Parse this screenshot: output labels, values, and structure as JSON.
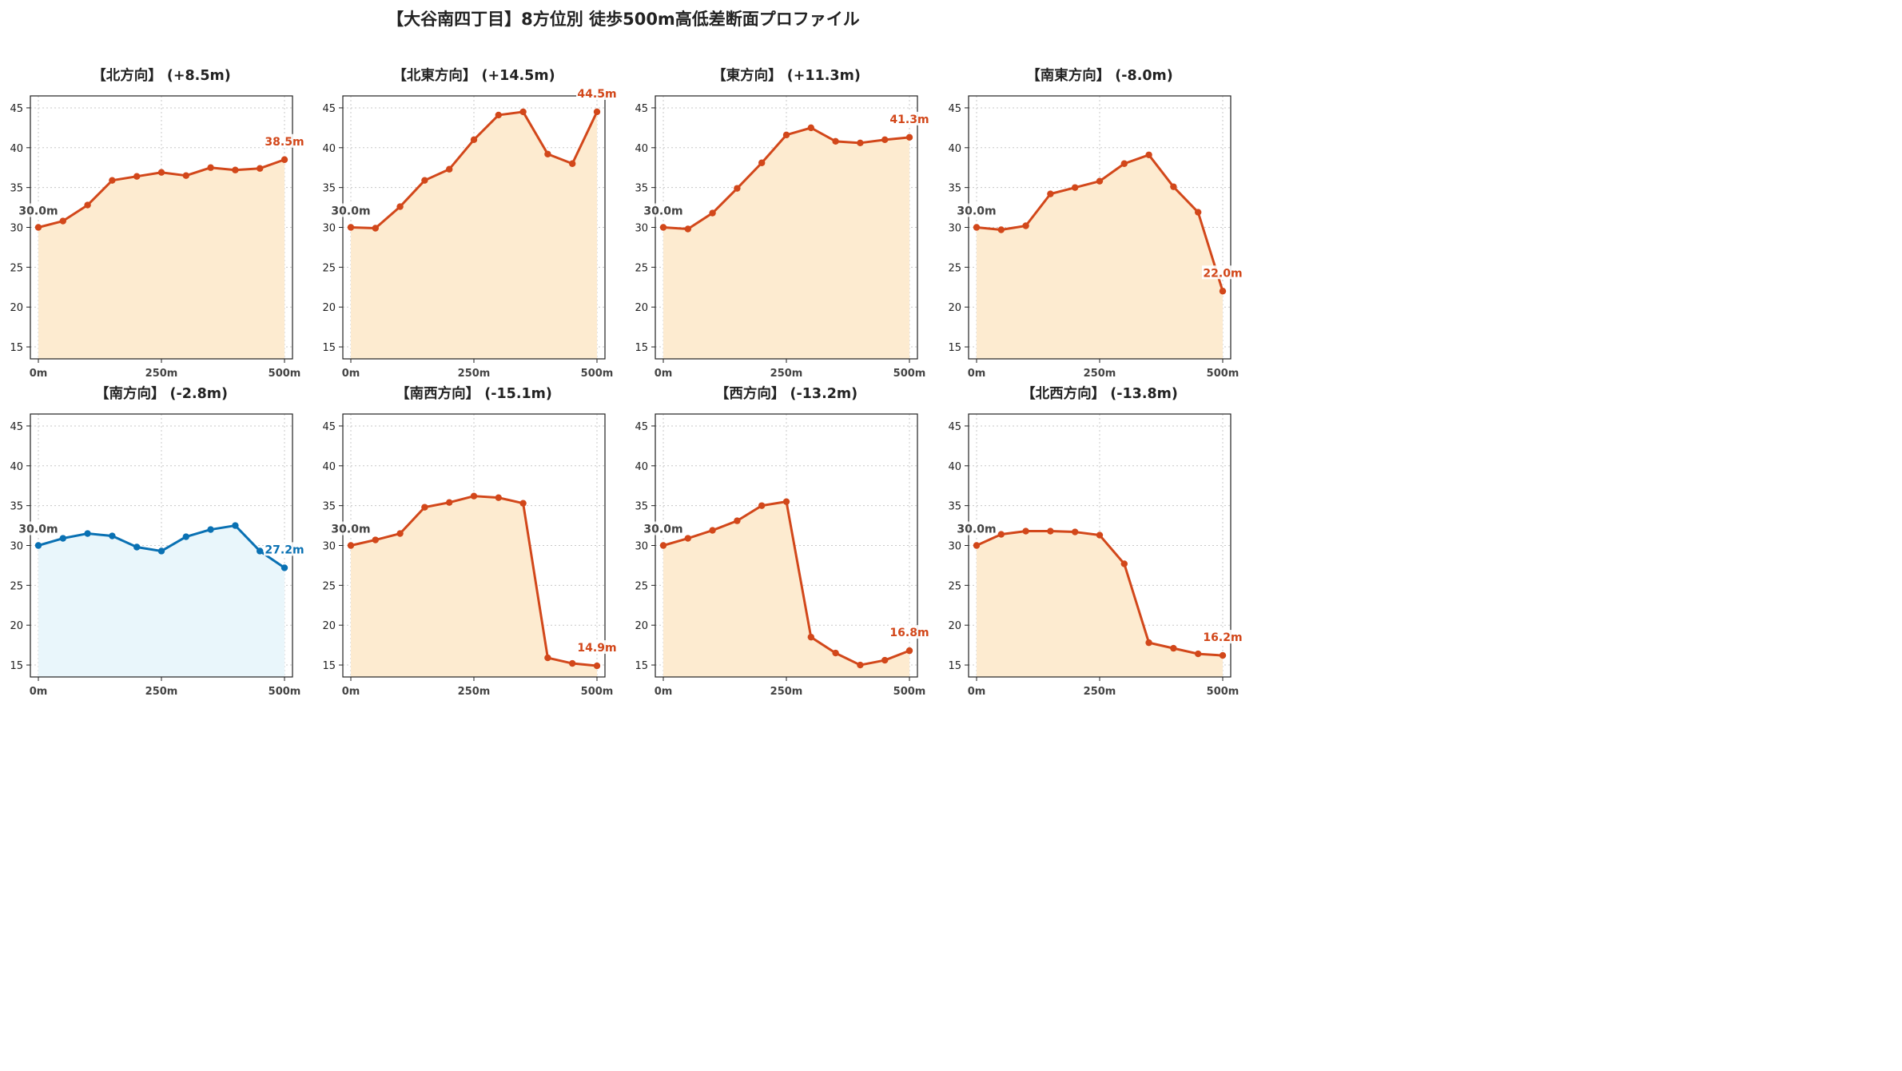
{
  "suptitle": "【大谷南四丁目】8方位別 徒歩500m高低差断面プロファイル",
  "colors": {
    "rise_line": "#d2471a",
    "rise_fill": "#fdebd0",
    "fall_line": "#0a71b3",
    "fall_fill": "#e9f6fb",
    "grid": "#c8c8c8"
  },
  "chart_data": [
    {
      "type": "area",
      "title": "【北方向】 (+8.5m)",
      "x": [
        0,
        50,
        100,
        150,
        200,
        250,
        300,
        350,
        400,
        450,
        500
      ],
      "values": [
        30.0,
        30.8,
        32.8,
        35.9,
        36.4,
        36.9,
        36.5,
        37.5,
        37.2,
        37.4,
        38.5
      ],
      "start_label": "30.0m",
      "end_label": "38.5m",
      "style": "rise",
      "ylim": [
        13.5,
        46.5
      ],
      "yticks": [
        "15",
        "20",
        "25",
        "30",
        "35",
        "40",
        "45"
      ],
      "xticks": [
        "0m",
        "250m",
        "500m"
      ],
      "grid": true
    },
    {
      "type": "area",
      "title": "【北東方向】 (+14.5m)",
      "x": [
        0,
        50,
        100,
        150,
        200,
        250,
        300,
        350,
        400,
        450,
        500
      ],
      "values": [
        30.0,
        29.9,
        32.6,
        35.9,
        37.3,
        41.0,
        44.1,
        44.5,
        39.2,
        38.0,
        44.5
      ],
      "start_label": "30.0m",
      "end_label": "44.5m",
      "style": "rise",
      "ylim": [
        13.5,
        46.5
      ],
      "yticks": [
        "15",
        "20",
        "25",
        "30",
        "35",
        "40",
        "45"
      ],
      "xticks": [
        "0m",
        "250m",
        "500m"
      ],
      "grid": true
    },
    {
      "type": "area",
      "title": "【東方向】 (+11.3m)",
      "x": [
        0,
        50,
        100,
        150,
        200,
        250,
        300,
        350,
        400,
        450,
        500
      ],
      "values": [
        30.0,
        29.8,
        31.8,
        34.9,
        38.1,
        41.6,
        42.5,
        40.8,
        40.6,
        41.0,
        41.3
      ],
      "start_label": "30.0m",
      "end_label": "41.3m",
      "style": "rise",
      "ylim": [
        13.5,
        46.5
      ],
      "yticks": [
        "15",
        "20",
        "25",
        "30",
        "35",
        "40",
        "45"
      ],
      "xticks": [
        "0m",
        "250m",
        "500m"
      ],
      "grid": true
    },
    {
      "type": "area",
      "title": "【南東方向】 (-8.0m)",
      "x": [
        0,
        50,
        100,
        150,
        200,
        250,
        300,
        350,
        400,
        450,
        500
      ],
      "values": [
        30.0,
        29.7,
        30.2,
        34.2,
        35.0,
        35.8,
        38.0,
        39.1,
        35.1,
        31.9,
        22.0
      ],
      "start_label": "30.0m",
      "end_label": "22.0m",
      "style": "rise",
      "ylim": [
        13.5,
        46.5
      ],
      "yticks": [
        "15",
        "20",
        "25",
        "30",
        "35",
        "40",
        "45"
      ],
      "xticks": [
        "0m",
        "250m",
        "500m"
      ],
      "grid": true
    },
    {
      "type": "area",
      "title": "【南方向】 (-2.8m)",
      "x": [
        0,
        50,
        100,
        150,
        200,
        250,
        300,
        350,
        400,
        450,
        500
      ],
      "values": [
        30.0,
        30.9,
        31.5,
        31.2,
        29.8,
        29.3,
        31.1,
        32.0,
        32.5,
        29.3,
        27.2
      ],
      "start_label": "30.0m",
      "end_label": "27.2m",
      "style": "fall",
      "ylim": [
        13.5,
        46.5
      ],
      "yticks": [
        "15",
        "20",
        "25",
        "30",
        "35",
        "40",
        "45"
      ],
      "xticks": [
        "0m",
        "250m",
        "500m"
      ],
      "grid": true
    },
    {
      "type": "area",
      "title": "【南西方向】 (-15.1m)",
      "x": [
        0,
        50,
        100,
        150,
        200,
        250,
        300,
        350,
        400,
        450,
        500
      ],
      "values": [
        30.0,
        30.7,
        31.5,
        34.8,
        35.4,
        36.2,
        36.0,
        35.3,
        15.9,
        15.2,
        14.9
      ],
      "start_label": "30.0m",
      "end_label": "14.9m",
      "style": "rise",
      "ylim": [
        13.5,
        46.5
      ],
      "yticks": [
        "15",
        "20",
        "25",
        "30",
        "35",
        "40",
        "45"
      ],
      "xticks": [
        "0m",
        "250m",
        "500m"
      ],
      "grid": true
    },
    {
      "type": "area",
      "title": "【西方向】 (-13.2m)",
      "x": [
        0,
        50,
        100,
        150,
        200,
        250,
        300,
        350,
        400,
        450,
        500
      ],
      "values": [
        30.0,
        30.9,
        31.9,
        33.1,
        35.0,
        35.5,
        18.5,
        16.5,
        15.0,
        15.6,
        16.8
      ],
      "start_label": "30.0m",
      "end_label": "16.8m",
      "style": "rise",
      "ylim": [
        13.5,
        46.5
      ],
      "yticks": [
        "15",
        "20",
        "25",
        "30",
        "35",
        "40",
        "45"
      ],
      "xticks": [
        "0m",
        "250m",
        "500m"
      ],
      "grid": true
    },
    {
      "type": "area",
      "title": "【北西方向】 (-13.8m)",
      "x": [
        0,
        50,
        100,
        150,
        200,
        250,
        300,
        350,
        400,
        450,
        500
      ],
      "values": [
        30.0,
        31.4,
        31.8,
        31.8,
        31.7,
        31.3,
        27.7,
        17.8,
        17.1,
        16.4,
        16.2
      ],
      "start_label": "30.0m",
      "end_label": "16.2m",
      "style": "rise",
      "ylim": [
        13.5,
        46.5
      ],
      "yticks": [
        "15",
        "20",
        "25",
        "30",
        "35",
        "40",
        "45"
      ],
      "xticks": [
        "0m",
        "250m",
        "500m"
      ],
      "grid": true
    }
  ]
}
